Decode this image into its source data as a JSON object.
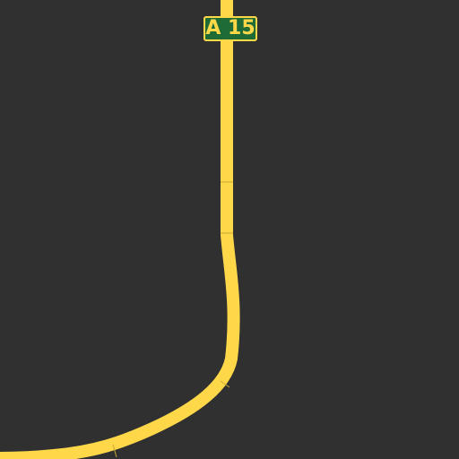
{
  "map": {
    "background_color": "#303030",
    "road": {
      "class": "major-road",
      "color": "#ffd84a",
      "casing_color": "#d9b53a",
      "ref": "A 15",
      "shield": {
        "text": "A 15",
        "background_color": "#1f6b36",
        "text_color": "#ffd84a",
        "border_color": "#ffd84a"
      }
    }
  }
}
